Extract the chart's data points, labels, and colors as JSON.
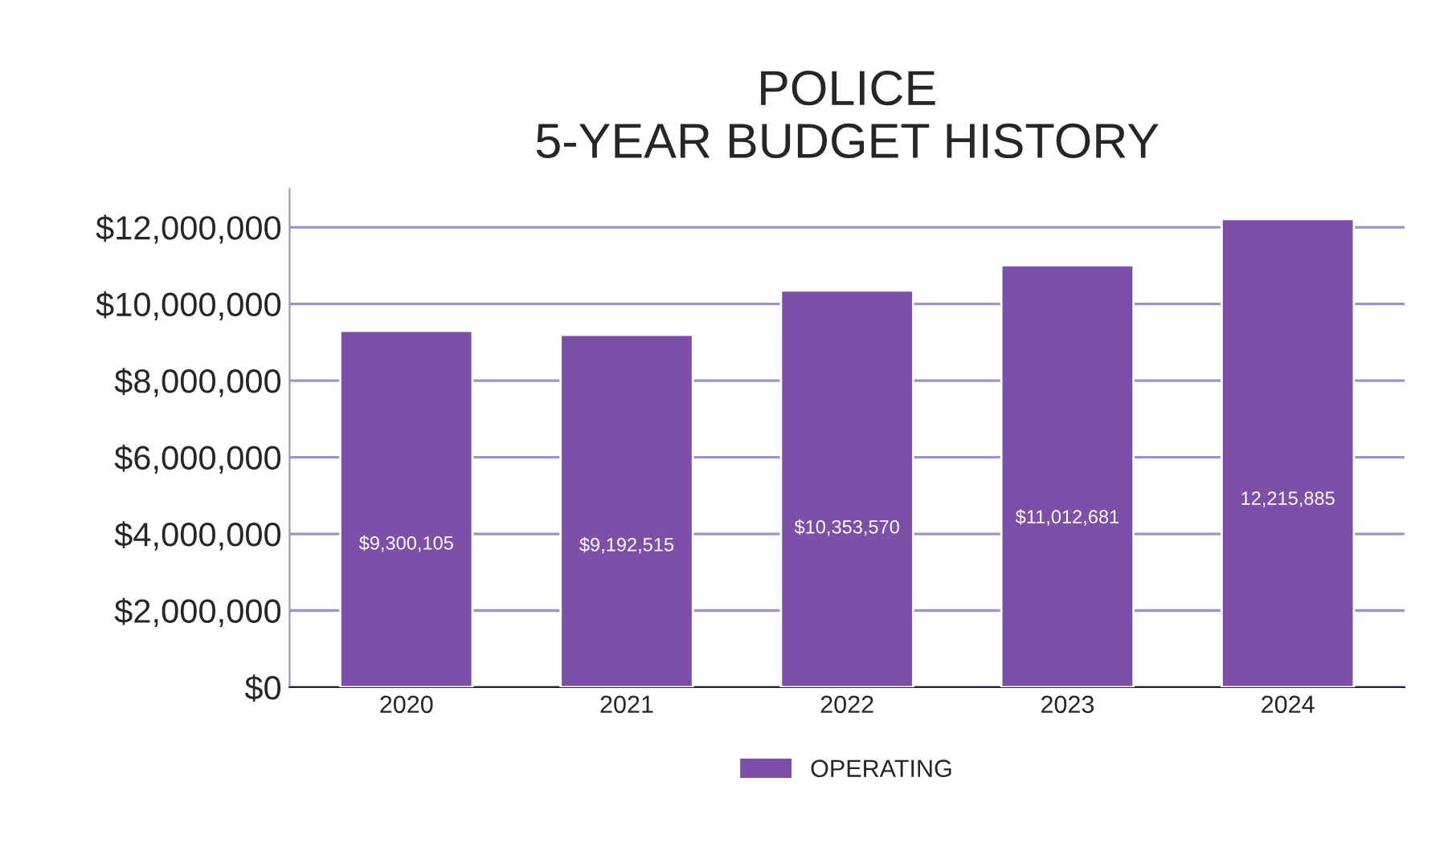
{
  "chart_data": {
    "type": "bar",
    "title": "POLICE\n5-YEAR BUDGET HISTORY",
    "categories": [
      "2020",
      "2021",
      "2022",
      "2023",
      "2024"
    ],
    "series": [
      {
        "name": "OPERATING",
        "color": "#7e4fa8",
        "values": [
          9300105,
          9192515,
          10353570,
          11012681,
          12215885
        ],
        "value_labels": [
          "$9,300,105",
          "$9,192,515",
          "$10,353,570",
          "$11,012,681",
          "12,215,885"
        ]
      }
    ],
    "ylim": [
      0,
      13000000
    ],
    "yticks": [
      {
        "value": 0,
        "label": "$0"
      },
      {
        "value": 2000000,
        "label": "$2,000,000"
      },
      {
        "value": 4000000,
        "label": "$4,000,000"
      },
      {
        "value": 6000000,
        "label": "$6,000,000"
      },
      {
        "value": 8000000,
        "label": "$8,000,000"
      },
      {
        "value": 10000000,
        "label": "$10,000,000"
      },
      {
        "value": 12000000,
        "label": "$12,000,000"
      }
    ],
    "grid": "y",
    "legend": "bottom"
  }
}
